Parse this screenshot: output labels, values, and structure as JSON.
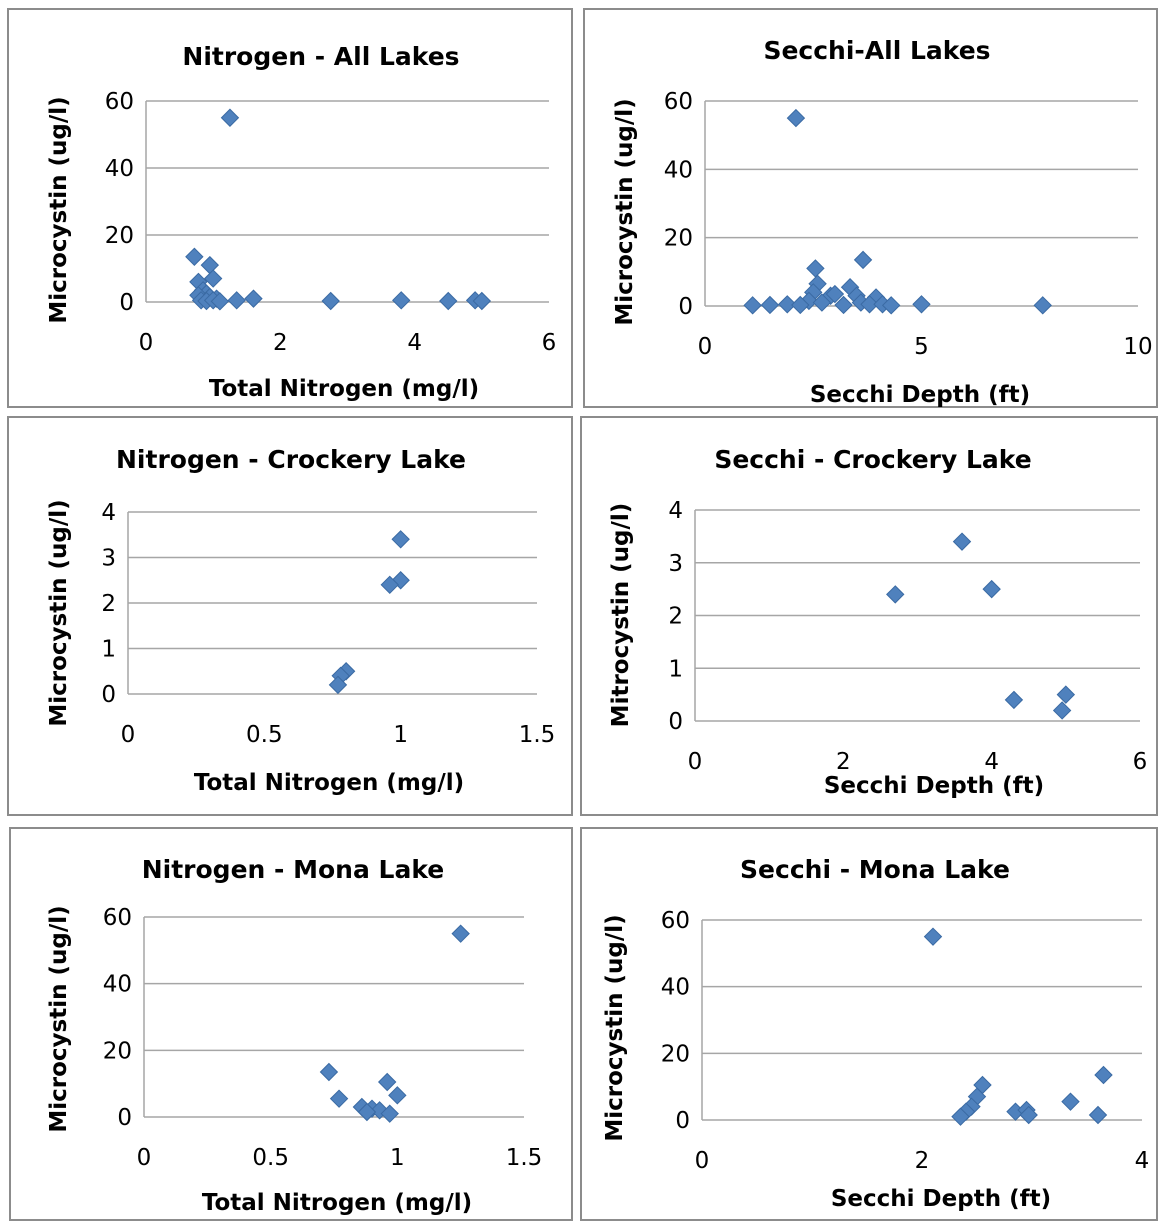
{
  "chart_data": [
    {
      "type": "scatter",
      "title": "Nitrogen - All Lakes",
      "xlabel": "Total Nitrogen (mg/l)",
      "ylabel": "Microcystin (ug/l)",
      "xlim": [
        0,
        6
      ],
      "ylim": [
        0,
        60
      ],
      "xticks": [
        "0",
        "2",
        "4",
        "6"
      ],
      "yticks": [
        "0",
        "20",
        "40",
        "60"
      ],
      "grid": "horizontal",
      "points": [
        {
          "x": 1.25,
          "y": 55
        },
        {
          "x": 0.72,
          "y": 13.5
        },
        {
          "x": 0.95,
          "y": 11
        },
        {
          "x": 1.0,
          "y": 7
        },
        {
          "x": 0.78,
          "y": 6
        },
        {
          "x": 0.85,
          "y": 3.5
        },
        {
          "x": 0.9,
          "y": 2.5
        },
        {
          "x": 0.78,
          "y": 2
        },
        {
          "x": 0.95,
          "y": 1.5
        },
        {
          "x": 1.05,
          "y": 1
        },
        {
          "x": 0.82,
          "y": 0.5
        },
        {
          "x": 0.9,
          "y": 0.3
        },
        {
          "x": 1.0,
          "y": 0.5
        },
        {
          "x": 1.1,
          "y": 0.2
        },
        {
          "x": 1.35,
          "y": 0.5
        },
        {
          "x": 1.6,
          "y": 1
        },
        {
          "x": 2.75,
          "y": 0.3
        },
        {
          "x": 3.8,
          "y": 0.5
        },
        {
          "x": 4.5,
          "y": 0.3
        },
        {
          "x": 4.9,
          "y": 0.5
        },
        {
          "x": 5.0,
          "y": 0.3
        }
      ]
    },
    {
      "type": "scatter",
      "title": "Secchi-All Lakes",
      "xlabel": "Secchi Depth (ft)",
      "ylabel": "Microcystin (ug/l)",
      "xlim": [
        0,
        10
      ],
      "ylim": [
        0,
        60
      ],
      "xticks": [
        "0",
        "5",
        "10"
      ],
      "yticks": [
        "0",
        "20",
        "40",
        "60"
      ],
      "grid": "horizontal",
      "points": [
        {
          "x": 2.1,
          "y": 55
        },
        {
          "x": 3.65,
          "y": 13.5
        },
        {
          "x": 2.55,
          "y": 11
        },
        {
          "x": 2.6,
          "y": 6.5
        },
        {
          "x": 3.35,
          "y": 5.5
        },
        {
          "x": 2.5,
          "y": 4
        },
        {
          "x": 2.9,
          "y": 3
        },
        {
          "x": 3.0,
          "y": 3.5
        },
        {
          "x": 3.5,
          "y": 3
        },
        {
          "x": 3.95,
          "y": 2.5
        },
        {
          "x": 2.4,
          "y": 1.5
        },
        {
          "x": 2.7,
          "y": 1
        },
        {
          "x": 3.6,
          "y": 1
        },
        {
          "x": 3.8,
          "y": 0.5
        },
        {
          "x": 4.1,
          "y": 0.5
        },
        {
          "x": 1.1,
          "y": 0.2
        },
        {
          "x": 1.5,
          "y": 0.3
        },
        {
          "x": 1.9,
          "y": 0.5
        },
        {
          "x": 2.2,
          "y": 0.3
        },
        {
          "x": 3.2,
          "y": 0.3
        },
        {
          "x": 4.3,
          "y": 0.2
        },
        {
          "x": 5.0,
          "y": 0.5
        },
        {
          "x": 7.8,
          "y": 0.2
        }
      ]
    },
    {
      "type": "scatter",
      "title": "Nitrogen - Crockery Lake",
      "xlabel": "Total Nitrogen (mg/l)",
      "ylabel": "Microcystin (ug/l)",
      "xlim": [
        0,
        1.5
      ],
      "ylim": [
        0,
        4
      ],
      "xticks": [
        "0",
        "0.5",
        "1",
        "1.5"
      ],
      "yticks": [
        "0",
        "1",
        "2",
        "3",
        "4"
      ],
      "grid": "horizontal",
      "points": [
        {
          "x": 1.0,
          "y": 3.4
        },
        {
          "x": 1.0,
          "y": 2.5
        },
        {
          "x": 0.96,
          "y": 2.4
        },
        {
          "x": 0.8,
          "y": 0.5
        },
        {
          "x": 0.78,
          "y": 0.4
        },
        {
          "x": 0.77,
          "y": 0.2
        }
      ]
    },
    {
      "type": "scatter",
      "title": "Secchi - Crockery Lake",
      "xlabel": "Secchi Depth (ft)",
      "ylabel": "Mitrocystin (ug/l)",
      "xlim": [
        0,
        6
      ],
      "ylim": [
        0,
        4
      ],
      "xticks": [
        "0",
        "2",
        "4",
        "6"
      ],
      "yticks": [
        "0",
        "1",
        "2",
        "3",
        "4"
      ],
      "grid": "horizontal",
      "points": [
        {
          "x": 3.6,
          "y": 3.4
        },
        {
          "x": 4.0,
          "y": 2.5
        },
        {
          "x": 2.7,
          "y": 2.4
        },
        {
          "x": 4.3,
          "y": 0.4
        },
        {
          "x": 5.0,
          "y": 0.5
        },
        {
          "x": 4.95,
          "y": 0.2
        }
      ]
    },
    {
      "type": "scatter",
      "title": "Nitrogen - Mona Lake",
      "xlabel": "Total Nitrogen (mg/l)",
      "ylabel": "Microcystin (ug/l)",
      "xlim": [
        0,
        1.5
      ],
      "ylim": [
        0,
        60
      ],
      "xticks": [
        "0",
        "0.5",
        "1",
        "1.5"
      ],
      "yticks": [
        "0",
        "20",
        "40",
        "60"
      ],
      "grid": "horizontal",
      "points": [
        {
          "x": 1.25,
          "y": 55
        },
        {
          "x": 0.73,
          "y": 13.5
        },
        {
          "x": 0.96,
          "y": 10.5
        },
        {
          "x": 1.0,
          "y": 6.5
        },
        {
          "x": 0.77,
          "y": 5.5
        },
        {
          "x": 0.86,
          "y": 3
        },
        {
          "x": 0.9,
          "y": 2.5
        },
        {
          "x": 0.93,
          "y": 2
        },
        {
          "x": 0.88,
          "y": 1.5
        },
        {
          "x": 0.97,
          "y": 1
        }
      ]
    },
    {
      "type": "scatter",
      "title": "Secchi - Mona Lake",
      "xlabel": "Secchi Depth (ft)",
      "ylabel": "Microcystin (ug/l)",
      "xlim": [
        0,
        4
      ],
      "ylim": [
        0,
        60
      ],
      "xticks": [
        "0",
        "2",
        "4"
      ],
      "yticks": [
        "0",
        "20",
        "40",
        "60"
      ],
      "grid": "horizontal",
      "points": [
        {
          "x": 2.1,
          "y": 55
        },
        {
          "x": 3.65,
          "y": 13.5
        },
        {
          "x": 2.55,
          "y": 10.5
        },
        {
          "x": 2.5,
          "y": 7
        },
        {
          "x": 3.35,
          "y": 5.5
        },
        {
          "x": 2.45,
          "y": 4
        },
        {
          "x": 2.4,
          "y": 2.5
        },
        {
          "x": 2.85,
          "y": 2.5
        },
        {
          "x": 2.95,
          "y": 3
        },
        {
          "x": 2.97,
          "y": 1.5
        },
        {
          "x": 2.35,
          "y": 1
        },
        {
          "x": 3.6,
          "y": 1.5
        }
      ]
    }
  ]
}
